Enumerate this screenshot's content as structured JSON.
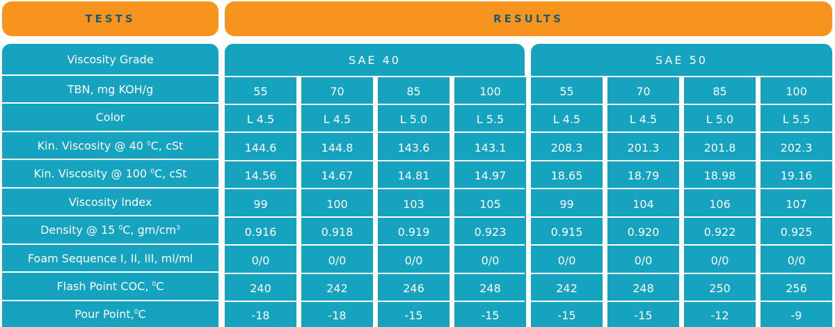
{
  "header": {
    "tests_label": "TESTS",
    "results_label": "RESULTS"
  },
  "tests": [
    {
      "pre": "Viscosity Grade"
    },
    {
      "pre": "TBN, mg KOH/g"
    },
    {
      "pre": "Color"
    },
    {
      "pre": "Kin. Viscosity @ 40 ",
      "sup": "0",
      "post": "C, cSt"
    },
    {
      "pre": "Kin. Viscosity @ 100 ",
      "sup": "0",
      "post": "C, cSt"
    },
    {
      "pre": "Viscosity Index"
    },
    {
      "pre": "Density @ 15 ",
      "sup": "0",
      "post": "C, gm/cm",
      "sup2": "3"
    },
    {
      "pre": "Foam Sequence I, II, III, ml/ml"
    },
    {
      "pre": "Flash Point COC, ",
      "sup": "0",
      "post": "C"
    },
    {
      "pre": "Pour Point,",
      "sup": "0",
      "post": "C"
    }
  ],
  "grades": [
    "SAE 40",
    "SAE 50"
  ],
  "columns": [
    {
      "tbn": "55",
      "color": "L 4.5",
      "kv40": "144.6",
      "kv100": "14.56",
      "vi": "99",
      "density": "0.916",
      "foam": "0/0",
      "flash": "240",
      "pour": "-18"
    },
    {
      "tbn": "70",
      "color": "L 4.5",
      "kv40": "144.8",
      "kv100": "14.67",
      "vi": "100",
      "density": "0.918",
      "foam": "0/0",
      "flash": "242",
      "pour": "-18"
    },
    {
      "tbn": "85",
      "color": "L 5.0",
      "kv40": "143.6",
      "kv100": "14.81",
      "vi": "103",
      "density": "0.919",
      "foam": "0/0",
      "flash": "246",
      "pour": "-15"
    },
    {
      "tbn": "100",
      "color": "L 5.5",
      "kv40": "143.1",
      "kv100": "14.97",
      "vi": "105",
      "density": "0.923",
      "foam": "0/0",
      "flash": "248",
      "pour": "-15"
    },
    {
      "tbn": "55",
      "color": "L 4.5",
      "kv40": "208.3",
      "kv100": "18.65",
      "vi": "99",
      "density": "0.915",
      "foam": "0/0",
      "flash": "242",
      "pour": "-15"
    },
    {
      "tbn": "70",
      "color": "L 4.5",
      "kv40": "201.3",
      "kv100": "18.79",
      "vi": "104",
      "density": "0.920",
      "foam": "0/0",
      "flash": "248",
      "pour": "-15"
    },
    {
      "tbn": "85",
      "color": "L 5.0",
      "kv40": "201.8",
      "kv100": "18.98",
      "vi": "106",
      "density": "0.922",
      "foam": "0/0",
      "flash": "250",
      "pour": "-12"
    },
    {
      "tbn": "100",
      "color": "L 5.5",
      "kv40": "202.3",
      "kv100": "19.16",
      "vi": "107",
      "density": "0.925",
      "foam": "0/0",
      "flash": "256",
      "pour": "-9"
    }
  ],
  "colors": {
    "header_bg": "#f7941d",
    "header_text": "#1b5a73",
    "cell_bg": "#15a3c0",
    "cell_text": "#ffffff"
  }
}
